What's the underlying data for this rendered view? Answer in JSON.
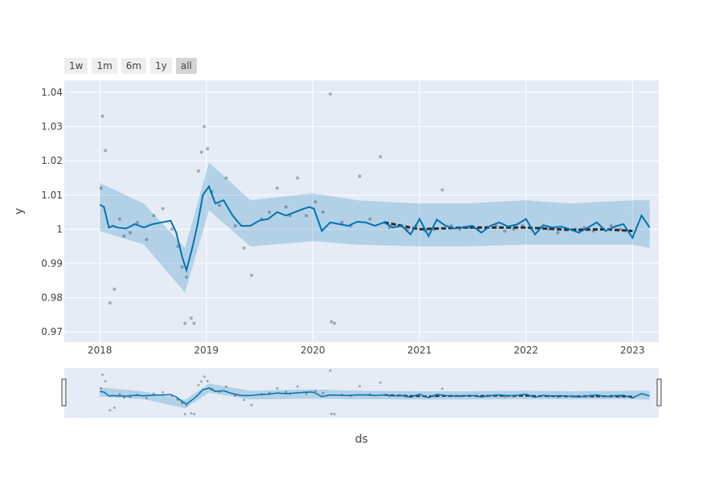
{
  "range_selector": {
    "buttons": [
      {
        "label": "1w",
        "active": false
      },
      {
        "label": "1m",
        "active": false
      },
      {
        "label": "6m",
        "active": false
      },
      {
        "label": "1y",
        "active": false
      },
      {
        "label": "all",
        "active": true
      }
    ]
  },
  "colors": {
    "plot_bg": "#e5ecf6",
    "grid": "#ffffff",
    "forecast_line": "#0072b2",
    "uncertainty_band": "rgba(0,114,178,0.22)",
    "observed_points": "#000000",
    "trend_dash": "#2a2a2a"
  },
  "chart_data": {
    "type": "line",
    "xlabel": "ds",
    "ylabel": "y",
    "x_tick_labels": [
      "2018",
      "2019",
      "2020",
      "2021",
      "2022",
      "2023"
    ],
    "y_tick_labels": [
      "0.97",
      "0.98",
      "0.99",
      "1",
      "1.01",
      "1.02",
      "1.03",
      "1.04"
    ],
    "xlim": [
      "2017-09-01",
      "2023-04-01"
    ],
    "ylim": [
      0.967,
      1.0435
    ],
    "grid": true,
    "range_slider": true,
    "series": [
      {
        "kind": "forecast",
        "x": [
          "2018-01-01",
          "2018-01-15",
          "2018-02-01",
          "2018-02-15",
          "2018-03-01",
          "2018-04-01",
          "2018-05-01",
          "2018-06-01",
          "2018-07-01",
          "2018-08-01",
          "2018-09-01",
          "2018-09-20",
          "2018-10-10",
          "2018-10-25",
          "2018-11-15",
          "2018-12-01",
          "2018-12-20",
          "2019-01-10",
          "2019-02-01",
          "2019-03-01",
          "2019-04-01",
          "2019-05-01",
          "2019-06-01",
          "2019-07-01",
          "2019-08-01",
          "2019-09-01",
          "2019-10-01",
          "2019-11-01",
          "2019-12-01",
          "2019-12-20",
          "2020-01-05",
          "2020-02-01",
          "2020-03-01",
          "2020-04-01",
          "2020-05-01",
          "2020-06-01",
          "2020-07-01",
          "2020-08-01",
          "2020-09-01",
          "2020-10-01",
          "2020-11-01",
          "2020-12-01",
          "2021-01-01",
          "2021-02-01",
          "2021-03-01",
          "2021-04-01",
          "2021-05-01",
          "2021-06-01",
          "2021-07-01",
          "2021-08-01",
          "2021-09-01",
          "2021-10-01",
          "2021-11-01",
          "2021-12-01",
          "2022-01-01",
          "2022-02-01",
          "2022-03-01",
          "2022-04-01",
          "2022-05-01",
          "2022-06-01",
          "2022-07-01",
          "2022-08-01",
          "2022-09-01",
          "2022-10-01",
          "2022-11-01",
          "2022-12-01",
          "2023-01-01",
          "2023-02-01",
          "2023-03-01"
        ],
        "y": [
          1.0072,
          1.0065,
          1.0005,
          1.001,
          1.0005,
          1.0002,
          1.0015,
          1.0005,
          1.0015,
          1.002,
          1.0025,
          0.999,
          0.992,
          0.988,
          0.995,
          1.001,
          1.01,
          1.0125,
          1.0075,
          1.0085,
          1.004,
          1.001,
          1.001,
          1.0025,
          1.003,
          1.005,
          1.004,
          1.005,
          1.006,
          1.0065,
          1.006,
          0.9995,
          1.002,
          1.0015,
          1.001,
          1.0022,
          1.002,
          1.001,
          1.002,
          1.0005,
          1.001,
          0.9985,
          1.003,
          0.998,
          1.0028,
          1.001,
          1.0002,
          1.0006,
          1.001,
          0.999,
          1.001,
          1.002,
          1.0008,
          1.0014,
          1.003,
          0.9985,
          1.0012,
          1.0005,
          1.0008,
          1.0,
          0.999,
          1.0005,
          1.002,
          0.9995,
          1.0008,
          1.0015,
          0.9975,
          1.004,
          1.0005
        ]
      },
      {
        "kind": "uncertainty_band",
        "x": [
          "2018-01-01",
          "2018-06-01",
          "2018-10-20",
          "2019-01-10",
          "2019-06-01",
          "2020-01-01",
          "2020-06-01",
          "2021-01-01",
          "2021-06-01",
          "2022-01-01",
          "2022-06-01",
          "2023-01-01",
          "2023-03-01"
        ],
        "lower": [
          0.9995,
          0.9955,
          0.9815,
          1.0055,
          0.995,
          0.9965,
          0.9955,
          0.995,
          0.995,
          0.9955,
          0.9955,
          0.9955,
          0.9945
        ],
        "upper": [
          1.0135,
          1.0075,
          0.9945,
          1.0195,
          1.0085,
          1.0105,
          1.0085,
          1.0075,
          1.0075,
          1.0085,
          1.0075,
          1.0085,
          1.0085
        ]
      },
      {
        "kind": "observed",
        "x": [
          "2018-01-05",
          "2018-01-10",
          "2018-01-20",
          "2018-02-05",
          "2018-02-20",
          "2018-03-10",
          "2018-03-25",
          "2018-04-15",
          "2018-05-10",
          "2018-06-10",
          "2018-07-05",
          "2018-08-05",
          "2018-09-05",
          "2018-09-25",
          "2018-10-10",
          "2018-10-20",
          "2018-10-25",
          "2018-11-10",
          "2018-11-20",
          "2018-12-05",
          "2018-12-15",
          "2018-12-25",
          "2019-01-05",
          "2019-01-20",
          "2019-02-15",
          "2019-03-10",
          "2019-04-10",
          "2019-05-10",
          "2019-06-05",
          "2019-07-10",
          "2019-08-05",
          "2019-09-01",
          "2019-10-01",
          "2019-10-15",
          "2019-11-10",
          "2019-12-10",
          "2020-01-10",
          "2020-02-05",
          "2020-03-01",
          "2020-03-05",
          "2020-03-15",
          "2020-04-10",
          "2020-05-10",
          "2020-06-10",
          "2020-07-15",
          "2020-08-20",
          "2020-09-20",
          "2020-10-20",
          "2020-11-20",
          "2020-12-20",
          "2021-01-20",
          "2021-02-20",
          "2021-03-20",
          "2021-04-20",
          "2021-05-20",
          "2021-06-20",
          "2021-07-20",
          "2021-08-20",
          "2021-09-20",
          "2021-10-20",
          "2021-11-20",
          "2021-12-20",
          "2022-01-20",
          "2022-02-20",
          "2022-03-20",
          "2022-04-20",
          "2022-05-20",
          "2022-06-20",
          "2022-07-20",
          "2022-08-20",
          "2022-09-20",
          "2022-10-20",
          "2022-11-20",
          "2022-12-20"
        ],
        "y": [
          1.012,
          1.033,
          1.023,
          0.9785,
          0.9825,
          1.003,
          0.998,
          0.999,
          1.002,
          0.997,
          1.004,
          1.006,
          1.0,
          0.995,
          0.989,
          0.9725,
          0.986,
          0.974,
          0.9725,
          1.017,
          1.0225,
          1.03,
          1.0235,
          1.011,
          1.007,
          1.015,
          1.001,
          0.9945,
          0.9865,
          1.003,
          1.005,
          1.012,
          1.0065,
          1.004,
          1.015,
          1.004,
          1.008,
          1.005,
          1.0395,
          0.973,
          0.9725,
          1.002,
          1.001,
          1.0155,
          1.003,
          1.0212,
          1.0005,
          1.001,
          1.0,
          1.001,
          0.9995,
          1.0,
          1.0115,
          1.001,
          1.0,
          1.0005,
          1.0,
          1.0005,
          1.001,
          0.9995,
          1.0,
          1.001,
          1.0,
          1.0005,
          1.0,
          0.999,
          1.0,
          1.0,
          1.0005,
          0.9995,
          1.0,
          1.001,
          1.0,
          0.9995
        ]
      },
      {
        "kind": "trend_dashed",
        "x": [
          "2020-09-01",
          "2021-01-01",
          "2021-06-01",
          "2022-01-01",
          "2022-06-01",
          "2022-10-01",
          "2023-01-01"
        ],
        "y": [
          1.002,
          1.0,
          1.0005,
          1.0005,
          0.9998,
          1.0,
          0.9995
        ]
      }
    ]
  }
}
